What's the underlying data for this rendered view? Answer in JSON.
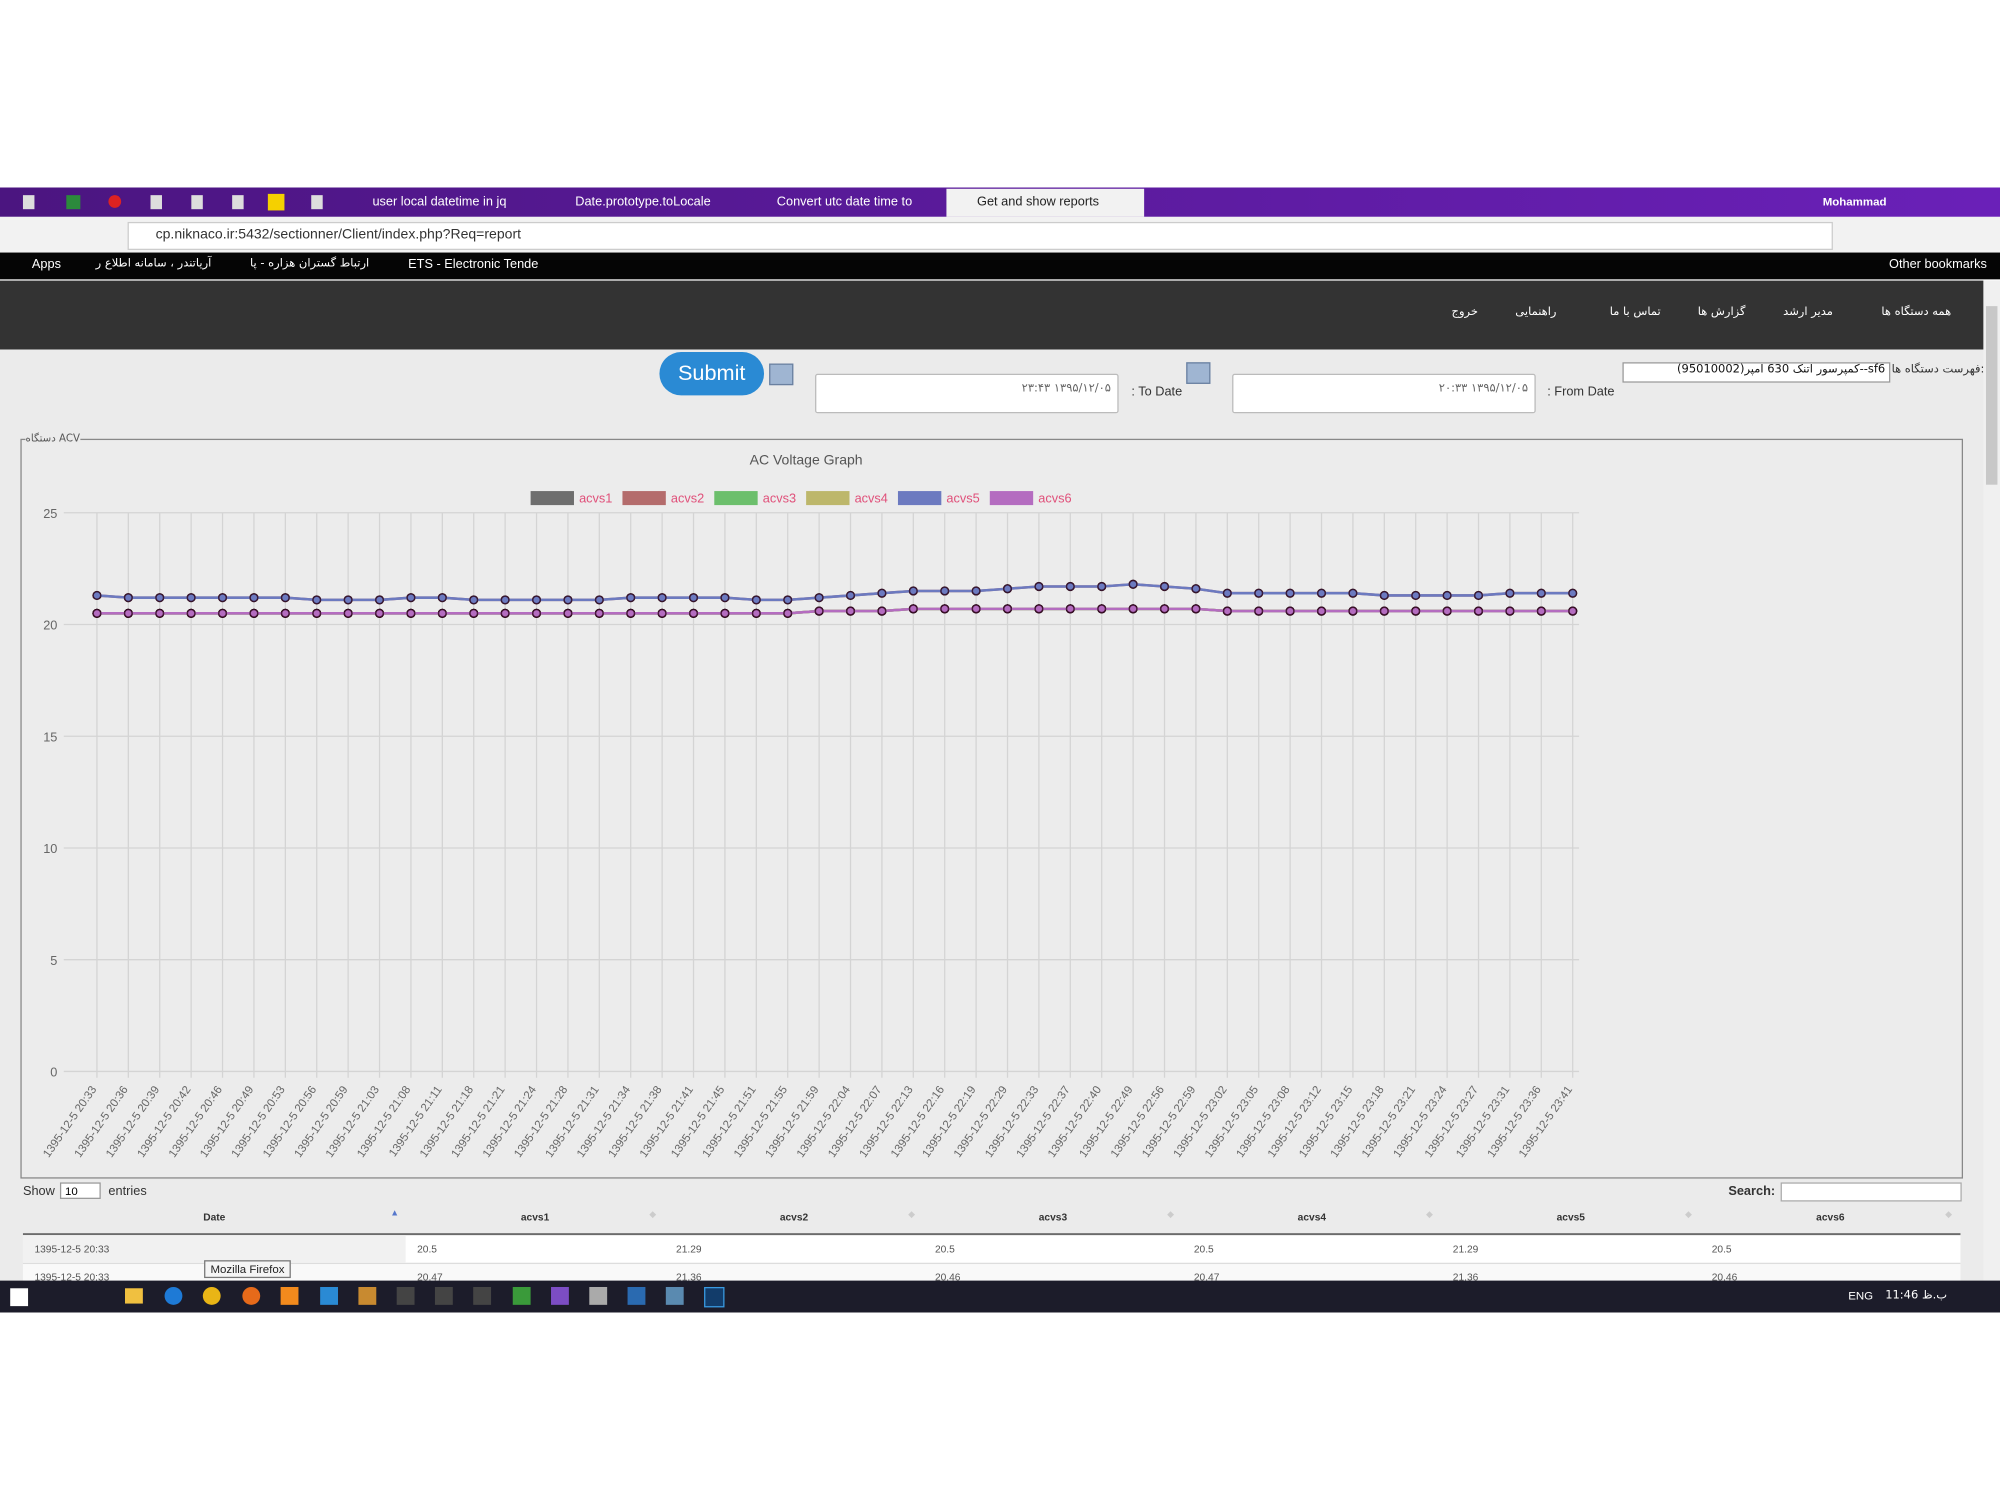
{
  "browser": {
    "tabs": [
      "user local datetime in jq",
      "Date.prototype.toLocale",
      "Convert utc date time to",
      "Get and show reports"
    ],
    "user": "Mohammad",
    "url": "cp.niknaco.ir:5432/sectionner/Client/index.php?Req=report",
    "bookmarks": [
      "Apps",
      "آریاتندر ، سامانه اطلاع ر",
      "ارتباط گستران هزاره - پا",
      "ETS - Electronic Tende"
    ],
    "other_bookmarks": "Other bookmarks"
  },
  "nav": {
    "items": [
      "همه دستگاه ها",
      "مدیر ارشد",
      "گزارش ها",
      "تماس با ما",
      "راهنمایی",
      "خروج"
    ]
  },
  "form": {
    "device_label": "فهرست دستگاه ها:",
    "device": "sf6--کمپرسور اتنک 630 آمپر(95010002)",
    "from_label": ": From Date",
    "from_value": "۱۳۹۵/۱۲/۰۵ ۲۰:۳۳",
    "to_label": ": To Date",
    "to_value": "۱۳۹۵/۱۲/۰۵ ۲۳:۴۳",
    "submit": "Submit"
  },
  "panel_legend": "دستگاه ACV",
  "chart_data": {
    "type": "line",
    "title": "AC Voltage Graph",
    "categories": [
      "1395-12-5 20:33",
      "1395-12-5 20:36",
      "1395-12-5 20:39",
      "1395-12-5 20:42",
      "1395-12-5 20:46",
      "1395-12-5 20:49",
      "1395-12-5 20:53",
      "1395-12-5 20:56",
      "1395-12-5 20:59",
      "1395-12-5 21:03",
      "1395-12-5 21:08",
      "1395-12-5 21:11",
      "1395-12-5 21:18",
      "1395-12-5 21:21",
      "1395-12-5 21:24",
      "1395-12-5 21:28",
      "1395-12-5 21:31",
      "1395-12-5 21:34",
      "1395-12-5 21:38",
      "1395-12-5 21:41",
      "1395-12-5 21:45",
      "1395-12-5 21:51",
      "1395-12-5 21:55",
      "1395-12-5 21:59",
      "1395-12-5 22:04",
      "1395-12-5 22:07",
      "1395-12-5 22:13",
      "1395-12-5 22:16",
      "1395-12-5 22:19",
      "1395-12-5 22:29",
      "1395-12-5 22:33",
      "1395-12-5 22:37",
      "1395-12-5 22:40",
      "1395-12-5 22:49",
      "1395-12-5 22:56",
      "1395-12-5 22:59",
      "1395-12-5 23:02",
      "1395-12-5 23:05",
      "1395-12-5 23:08",
      "1395-12-5 23:12",
      "1395-12-5 23:15",
      "1395-12-5 23:18",
      "1395-12-5 23:21",
      "1395-12-5 23:24",
      "1395-12-5 23:27",
      "1395-12-5 23:31",
      "1395-12-5 23:36",
      "1395-12-5 23:41"
    ],
    "series": [
      {
        "name": "acvs1",
        "color": "#6e6e6e",
        "values": [
          20.5,
          20.5,
          20.5,
          20.5,
          20.5,
          20.5,
          20.5,
          20.5,
          20.5,
          20.5,
          20.5,
          20.5,
          20.5,
          20.5,
          20.5,
          20.5,
          20.5,
          20.5,
          20.5,
          20.5,
          20.5,
          20.5,
          20.5,
          20.6,
          20.6,
          20.6,
          20.7,
          20.7,
          20.7,
          20.7,
          20.7,
          20.7,
          20.7,
          20.7,
          20.7,
          20.7,
          20.6,
          20.6,
          20.6,
          20.6,
          20.6,
          20.6,
          20.6,
          20.6,
          20.6,
          20.6,
          20.6,
          20.6
        ]
      },
      {
        "name": "acvs2",
        "color": "#b46c6c",
        "values": [
          21.3,
          21.2,
          21.2,
          21.2,
          21.2,
          21.2,
          21.2,
          21.1,
          21.1,
          21.1,
          21.2,
          21.2,
          21.1,
          21.1,
          21.1,
          21.1,
          21.1,
          21.2,
          21.2,
          21.2,
          21.2,
          21.1,
          21.1,
          21.2,
          21.3,
          21.4,
          21.5,
          21.5,
          21.5,
          21.6,
          21.7,
          21.7,
          21.7,
          21.8,
          21.7,
          21.6,
          21.4,
          21.4,
          21.4,
          21.4,
          21.4,
          21.3,
          21.3,
          21.3,
          21.3,
          21.4,
          21.4,
          21.4
        ]
      },
      {
        "name": "acvs3",
        "color": "#6cbf6c",
        "values": [
          20.5,
          20.5,
          20.5,
          20.5,
          20.5,
          20.5,
          20.5,
          20.5,
          20.5,
          20.5,
          20.5,
          20.5,
          20.5,
          20.5,
          20.5,
          20.5,
          20.5,
          20.5,
          20.5,
          20.5,
          20.5,
          20.5,
          20.5,
          20.6,
          20.6,
          20.6,
          20.7,
          20.7,
          20.7,
          20.7,
          20.7,
          20.7,
          20.7,
          20.7,
          20.7,
          20.7,
          20.6,
          20.6,
          20.6,
          20.6,
          20.6,
          20.6,
          20.6,
          20.6,
          20.6,
          20.6,
          20.6,
          20.6
        ]
      },
      {
        "name": "acvs4",
        "color": "#bdb76b",
        "values": [
          20.5,
          20.5,
          20.5,
          20.5,
          20.5,
          20.5,
          20.5,
          20.5,
          20.5,
          20.5,
          20.5,
          20.5,
          20.5,
          20.5,
          20.5,
          20.5,
          20.5,
          20.5,
          20.5,
          20.5,
          20.5,
          20.5,
          20.5,
          20.6,
          20.6,
          20.6,
          20.7,
          20.7,
          20.7,
          20.7,
          20.7,
          20.7,
          20.7,
          20.7,
          20.7,
          20.7,
          20.6,
          20.6,
          20.6,
          20.6,
          20.6,
          20.6,
          20.6,
          20.6,
          20.6,
          20.6,
          20.6,
          20.6
        ]
      },
      {
        "name": "acvs5",
        "color": "#6c7ac0",
        "values": [
          21.3,
          21.2,
          21.2,
          21.2,
          21.2,
          21.2,
          21.2,
          21.1,
          21.1,
          21.1,
          21.2,
          21.2,
          21.1,
          21.1,
          21.1,
          21.1,
          21.1,
          21.2,
          21.2,
          21.2,
          21.2,
          21.1,
          21.1,
          21.2,
          21.3,
          21.4,
          21.5,
          21.5,
          21.5,
          21.6,
          21.7,
          21.7,
          21.7,
          21.8,
          21.7,
          21.6,
          21.4,
          21.4,
          21.4,
          21.4,
          21.4,
          21.3,
          21.3,
          21.3,
          21.3,
          21.4,
          21.4,
          21.4
        ]
      },
      {
        "name": "acvs6",
        "color": "#b46cc0",
        "values": [
          20.5,
          20.5,
          20.5,
          20.5,
          20.5,
          20.5,
          20.5,
          20.5,
          20.5,
          20.5,
          20.5,
          20.5,
          20.5,
          20.5,
          20.5,
          20.5,
          20.5,
          20.5,
          20.5,
          20.5,
          20.5,
          20.5,
          20.5,
          20.6,
          20.6,
          20.6,
          20.7,
          20.7,
          20.7,
          20.7,
          20.7,
          20.7,
          20.7,
          20.7,
          20.7,
          20.7,
          20.6,
          20.6,
          20.6,
          20.6,
          20.6,
          20.6,
          20.6,
          20.6,
          20.6,
          20.6,
          20.6,
          20.6
        ]
      }
    ],
    "ylim": [
      0,
      25
    ],
    "yticks": [
      0,
      5,
      10,
      15,
      20,
      25
    ],
    "grid": true,
    "legend": "top"
  },
  "table": {
    "show": "Show",
    "length": "10",
    "entries": "entries",
    "search": "Search:",
    "columns": [
      "Date",
      "acvs1",
      "acvs2",
      "acvs3",
      "acvs4",
      "acvs5",
      "acvs6"
    ],
    "rows": [
      [
        "1395-12-5 20:33",
        "20.5",
        "21.29",
        "20.5",
        "20.5",
        "21.29",
        "20.5"
      ],
      [
        "1395-12-5 20:33",
        "20.47",
        "21.36",
        "20.46",
        "20.47",
        "21.36",
        "20.46"
      ]
    ]
  },
  "tooltip": "Mozilla Firefox",
  "taskbar": {
    "language": "ENG",
    "time": "11:46 ب.ظ"
  }
}
